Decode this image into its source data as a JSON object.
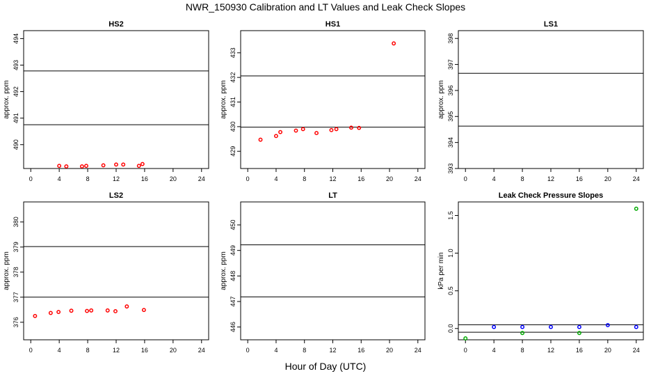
{
  "title": "NWR_150930  Calibration and LT Values and Leak Check Slopes",
  "xlabel": "Hour of Day (UTC)",
  "chart_data": [
    {
      "type": "scatter",
      "title": "HS2",
      "ylabel": "approx. ppm",
      "xlim": [
        -1,
        25
      ],
      "ylim": [
        489.1,
        494.3
      ],
      "xticks": [
        0,
        4,
        8,
        12,
        16,
        20,
        24
      ],
      "yticks": [
        490,
        491,
        492,
        493,
        494
      ],
      "hlines": [
        490.75,
        492.78
      ],
      "series": [
        {
          "color": "#ff0000",
          "marker": "circle",
          "points": [
            [
              4.0,
              489.2
            ],
            [
              5.0,
              489.18
            ],
            [
              7.2,
              489.18
            ],
            [
              7.8,
              489.2
            ],
            [
              10.2,
              489.22
            ],
            [
              12.0,
              489.25
            ],
            [
              13.0,
              489.25
            ],
            [
              15.2,
              489.2
            ],
            [
              15.7,
              489.27
            ]
          ]
        }
      ]
    },
    {
      "type": "scatter",
      "title": "HS1",
      "ylabel": "approx. ppm",
      "xlim": [
        -1,
        25
      ],
      "ylim": [
        428.3,
        433.9
      ],
      "xticks": [
        0,
        4,
        8,
        12,
        16,
        20,
        24
      ],
      "yticks": [
        429,
        430,
        431,
        432,
        433
      ],
      "hlines": [
        429.98,
        432.06
      ],
      "series": [
        {
          "color": "#ff0000",
          "marker": "circle",
          "points": [
            [
              1.8,
              429.47
            ],
            [
              4.0,
              429.62
            ],
            [
              4.6,
              429.78
            ],
            [
              6.8,
              429.84
            ],
            [
              7.8,
              429.9
            ],
            [
              9.7,
              429.74
            ],
            [
              11.8,
              429.86
            ],
            [
              12.5,
              429.9
            ],
            [
              14.6,
              429.96
            ],
            [
              15.7,
              429.95
            ],
            [
              20.6,
              433.38
            ]
          ]
        }
      ]
    },
    {
      "type": "scatter",
      "title": "LS1",
      "ylabel": "approx. ppm",
      "xlim": [
        -1,
        25
      ],
      "ylim": [
        393.0,
        398.3
      ],
      "xticks": [
        0,
        4,
        8,
        12,
        16,
        20,
        24
      ],
      "yticks": [
        393,
        394,
        395,
        396,
        397,
        398
      ],
      "hlines": [
        394.63,
        396.66
      ],
      "series": []
    },
    {
      "type": "scatter",
      "title": "LS2",
      "ylabel": "approx. ppm",
      "xlim": [
        -1,
        25
      ],
      "ylim": [
        375.3,
        380.8
      ],
      "xticks": [
        0,
        4,
        8,
        12,
        16,
        20,
        24
      ],
      "yticks": [
        376,
        377,
        378,
        379,
        380
      ],
      "hlines": [
        377.0,
        379.02
      ],
      "series": [
        {
          "color": "#ff0000",
          "marker": "circle",
          "points": [
            [
              0.6,
              376.25
            ],
            [
              2.8,
              376.37
            ],
            [
              3.9,
              376.41
            ],
            [
              5.7,
              376.46
            ],
            [
              7.9,
              376.45
            ],
            [
              8.5,
              376.47
            ],
            [
              10.8,
              376.47
            ],
            [
              11.9,
              376.44
            ],
            [
              13.5,
              376.63
            ],
            [
              15.9,
              376.49
            ]
          ]
        }
      ]
    },
    {
      "type": "scatter",
      "title": "LT",
      "ylabel": "approx. ppm",
      "xlim": [
        -1,
        25
      ],
      "ylim": [
        445.5,
        450.9
      ],
      "xticks": [
        0,
        4,
        8,
        12,
        16,
        20,
        24
      ],
      "yticks": [
        446,
        447,
        448,
        449,
        450
      ],
      "hlines": [
        447.18,
        449.22
      ],
      "series": []
    },
    {
      "type": "scatter",
      "title": "Leak Check Pressure Slopes",
      "ylabel": "kPa per min",
      "xlim": [
        -1,
        25
      ],
      "ylim": [
        -0.15,
        1.68
      ],
      "xticks": [
        0,
        4,
        8,
        12,
        16,
        20,
        24
      ],
      "yticks": [
        0.0,
        0.5,
        1.0,
        1.5
      ],
      "ytick_labels": [
        "0.0",
        "0.5",
        "1.0",
        "1.5"
      ],
      "hlines": [
        0.05,
        -0.05
      ],
      "series": [
        {
          "color": "#0000ff",
          "marker": "circle",
          "points": [
            [
              4,
              0.02
            ],
            [
              8,
              0.02
            ],
            [
              12,
              0.02
            ],
            [
              16,
              0.02
            ],
            [
              20,
              0.045
            ],
            [
              24,
              0.02
            ]
          ]
        },
        {
          "color": "#00aa00",
          "marker": "circle",
          "points": [
            [
              0,
              -0.14
            ],
            [
              8,
              -0.06
            ],
            [
              16,
              -0.06
            ],
            [
              24,
              1.59
            ]
          ]
        }
      ]
    }
  ]
}
